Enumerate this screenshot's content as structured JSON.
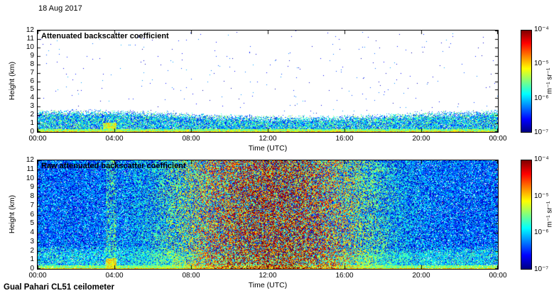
{
  "page": {
    "date_label": "18 Aug 2017",
    "footer_label": "Gual Pahari CL51 ceilometer"
  },
  "chart_data": [
    {
      "type": "heatmap",
      "title": "Attenuated backscatter coefficient",
      "xlabel": "Time (UTC)",
      "ylabel": "Height (km)",
      "x_ticks": [
        "00:00",
        "04:00",
        "08:00",
        "12:00",
        "16:00",
        "20:00",
        "00:00"
      ],
      "x_range_hours": [
        0,
        24
      ],
      "y_ticks_km": [
        0,
        1,
        2,
        3,
        4,
        5,
        6,
        7,
        8,
        9,
        10,
        11,
        12
      ],
      "y_range_km": [
        0,
        12
      ],
      "colorbar": {
        "tick_labels": [
          "10⁻⁴",
          "10⁻⁵",
          "10⁻⁶",
          "10⁻⁷"
        ],
        "label": "m⁻¹ sr⁻¹",
        "log10_min": -7,
        "log10_max": -4,
        "colormap": "jet"
      },
      "field": {
        "description": "Aerosol boundary layer backscatter below ~2 km (blue/green speckle, green-yellow near surface), clear white sky above with very sparse noise dots",
        "aerosol_layer": {
          "base_top_km": 2.0,
          "top_variation_km": 0.35,
          "surface_log10": -5.0,
          "layer_log10_range": [
            -6.7,
            -5.3
          ]
        },
        "plume_event": {
          "time_utc": [
            3.4,
            4.1
          ],
          "top_km": 1.1
        },
        "sparse_noise_dot_probability": 0.004
      }
    },
    {
      "type": "heatmap",
      "title": "Raw attenuated backscatter coefficient",
      "xlabel": "Time (UTC)",
      "ylabel": "Height (km)",
      "x_ticks": [
        "00:00",
        "04:00",
        "08:00",
        "12:00",
        "16:00",
        "20:00",
        "00:00"
      ],
      "x_range_hours": [
        0,
        24
      ],
      "y_ticks_km": [
        0,
        1,
        2,
        3,
        4,
        5,
        6,
        7,
        8,
        9,
        10,
        11,
        12
      ],
      "y_range_km": [
        0,
        12
      ],
      "colorbar": {
        "tick_labels": [
          "10⁻⁴",
          "10⁻⁵",
          "10⁻⁶",
          "10⁻⁷"
        ],
        "label": "m⁻¹ sr⁻¹",
        "log10_min": -7,
        "log10_max": -4,
        "colormap": "jet"
      },
      "field": {
        "description": "Same aerosol layer plus solar background noise filling the whole profile; blue at night, yellow-orange-red noise strongest ~08:00-16:00 UTC up to 12 km",
        "aerosol_layer": {
          "base_top_km": 2.0,
          "top_variation_km": 0.35,
          "surface_log10": -5.0,
          "layer_log10_range": [
            -6.6,
            -5.4
          ]
        },
        "plume_event": {
          "time_utc": [
            3.55,
            4.1
          ],
          "top_km": 1.2
        },
        "solar_noise": {
          "peak_utc": 12.2,
          "sigma_h": 4.8,
          "night_amp": 1.15,
          "day_amp": 2.85
        }
      }
    }
  ]
}
